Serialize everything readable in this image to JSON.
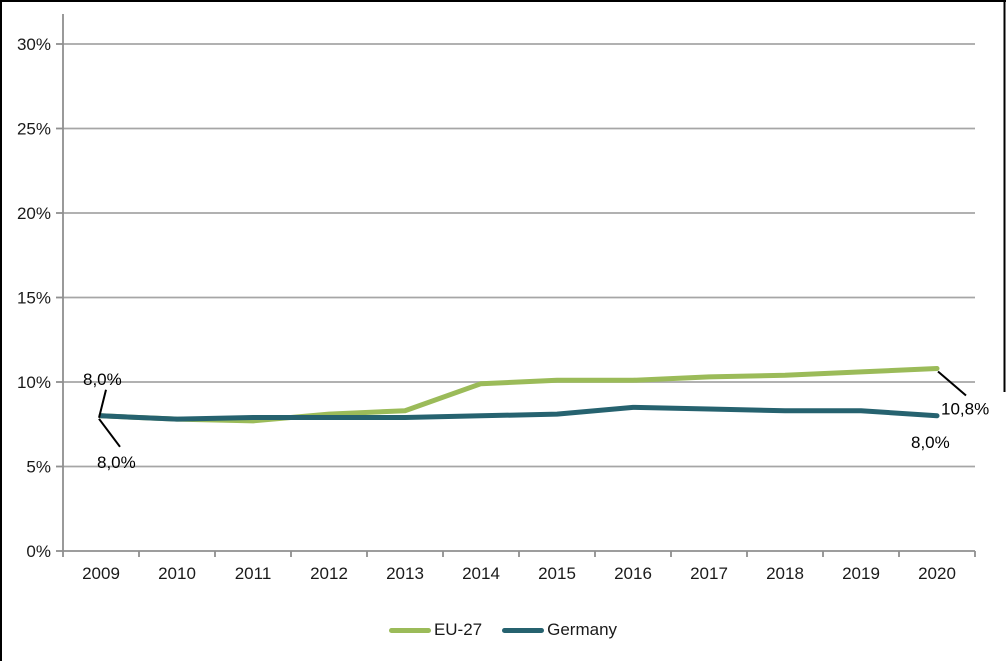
{
  "chart_data": {
    "type": "line",
    "title": "",
    "xlabel": "",
    "ylabel": "",
    "categories": [
      "2009",
      "2010",
      "2011",
      "2012",
      "2013",
      "2014",
      "2015",
      "2016",
      "2017",
      "2018",
      "2019",
      "2020"
    ],
    "series": [
      {
        "name": "EU-27",
        "color": "#9BBB59",
        "values": [
          8.0,
          7.8,
          7.7,
          8.1,
          8.3,
          9.9,
          10.1,
          10.1,
          10.3,
          10.4,
          10.6,
          10.8
        ]
      },
      {
        "name": "Germany",
        "color": "#26626F",
        "values": [
          8.0,
          7.8,
          7.9,
          7.9,
          7.9,
          8.0,
          8.1,
          8.5,
          8.4,
          8.3,
          8.3,
          8.0
        ]
      }
    ],
    "ylim": [
      0,
      30
    ],
    "y_tick_values": [
      0,
      5,
      10,
      15,
      20,
      25,
      30
    ],
    "y_tick_labels": [
      "0%",
      "5%",
      "10%",
      "15%",
      "20%",
      "25%",
      "30%"
    ],
    "grid": true,
    "legend_position": "bottom",
    "annotations": [
      {
        "label": "8,0%",
        "series": "EU-27",
        "category": "2009",
        "value": 8.0,
        "placement": "callout-above"
      },
      {
        "label": "8,0%",
        "series": "Germany",
        "category": "2009",
        "value": 8.0,
        "placement": "callout-below"
      },
      {
        "label": "10,8%",
        "series": "EU-27",
        "category": "2020",
        "value": 10.8,
        "placement": "callout-right"
      },
      {
        "label": "8,0%",
        "series": "Germany",
        "category": "2020",
        "value": 8.0,
        "placement": "below"
      }
    ],
    "colors": {
      "gridline": "#A6A6A6",
      "axis": "#8F8F8F",
      "tick_text": "#1a1a1a",
      "annotation_text": "#000000",
      "annotation_line": "#000000",
      "frame_border": "#000000"
    }
  },
  "legend": {
    "items": [
      {
        "label": "EU-27"
      },
      {
        "label": "Germany"
      }
    ]
  }
}
